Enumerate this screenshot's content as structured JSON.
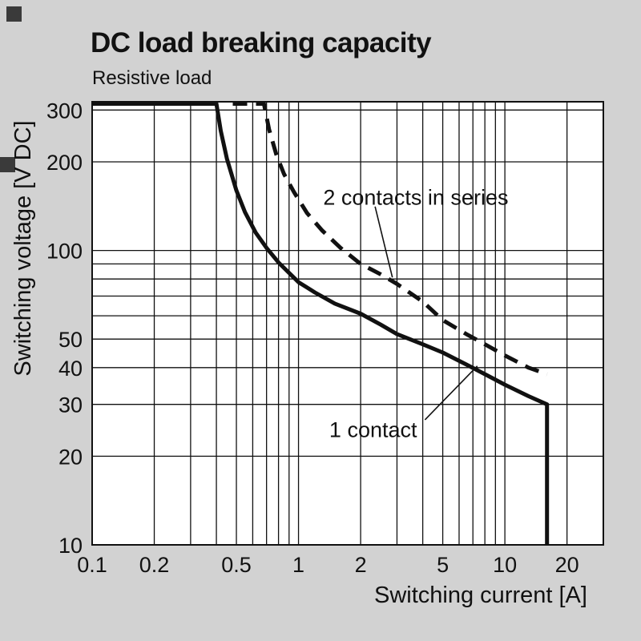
{
  "page": {
    "title": "DC load breaking capacity",
    "subtitle": "Resistive load"
  },
  "colors": {
    "background": "#d2d2d2",
    "plot_background": "#ffffff",
    "ink": "#111111",
    "mark": "#3a3a3a"
  },
  "chart_data": {
    "type": "line",
    "title": "DC load breaking capacity",
    "subtitle": "Resistive load",
    "xlabel": "Switching current [A]",
    "ylabel": "Switching voltage [V DC]",
    "x_scale": "log",
    "y_scale": "log",
    "xlim": [
      0.1,
      30
    ],
    "ylim": [
      10,
      320
    ],
    "grid": true,
    "legend": "inline-annotations",
    "x_ticks": [
      0.1,
      0.2,
      0.5,
      1,
      2,
      5,
      10,
      20
    ],
    "y_ticks": [
      10,
      20,
      30,
      40,
      50,
      100,
      200,
      300
    ],
    "x_gridlines": [
      0.2,
      0.3,
      0.4,
      0.5,
      0.6,
      0.7,
      0.8,
      0.9,
      1,
      2,
      3,
      4,
      5,
      6,
      7,
      8,
      9,
      10,
      20
    ],
    "y_gridlines": [
      20,
      30,
      40,
      50,
      60,
      70,
      80,
      90,
      100,
      200,
      300
    ],
    "series": [
      {
        "name": "1 contact",
        "style": "solid",
        "points": [
          [
            0.1,
            315
          ],
          [
            0.4,
            315
          ],
          [
            0.42,
            255
          ],
          [
            0.45,
            205
          ],
          [
            0.5,
            160
          ],
          [
            0.55,
            135
          ],
          [
            0.62,
            115
          ],
          [
            0.7,
            102
          ],
          [
            0.8,
            91
          ],
          [
            1.0,
            78
          ],
          [
            1.2,
            72
          ],
          [
            1.5,
            66
          ],
          [
            2.0,
            61
          ],
          [
            2.5,
            56
          ],
          [
            3.0,
            52
          ],
          [
            4.0,
            48
          ],
          [
            5.0,
            45
          ],
          [
            6.5,
            41
          ],
          [
            8.0,
            38
          ],
          [
            10,
            35
          ],
          [
            13,
            32
          ],
          [
            16,
            30
          ],
          [
            16,
            10
          ]
        ]
      },
      {
        "name": "2 contacts in series",
        "style": "dashed",
        "points": [
          [
            0.48,
            315
          ],
          [
            0.68,
            315
          ],
          [
            0.72,
            258
          ],
          [
            0.78,
            212
          ],
          [
            0.85,
            182
          ],
          [
            0.95,
            158
          ],
          [
            1.1,
            134
          ],
          [
            1.3,
            117
          ],
          [
            1.6,
            102
          ],
          [
            2.0,
            90
          ],
          [
            2.5,
            83
          ],
          [
            3.0,
            77
          ],
          [
            4.0,
            67
          ],
          [
            5.0,
            58
          ],
          [
            6.5,
            52
          ],
          [
            8.0,
            48
          ],
          [
            10,
            44
          ],
          [
            13,
            40
          ],
          [
            16,
            38
          ]
        ]
      }
    ],
    "annotations": [
      {
        "label": "2 contacts in series",
        "text_x": 3.7,
        "text_y": 143,
        "line": [
          [
            2.35,
            141
          ],
          [
            2.85,
            81
          ]
        ]
      },
      {
        "label": "1 contact",
        "text_x": 2.3,
        "text_y": 23.2,
        "line": [
          [
            4.1,
            26.6
          ],
          [
            7.35,
            40.5
          ]
        ]
      }
    ]
  }
}
